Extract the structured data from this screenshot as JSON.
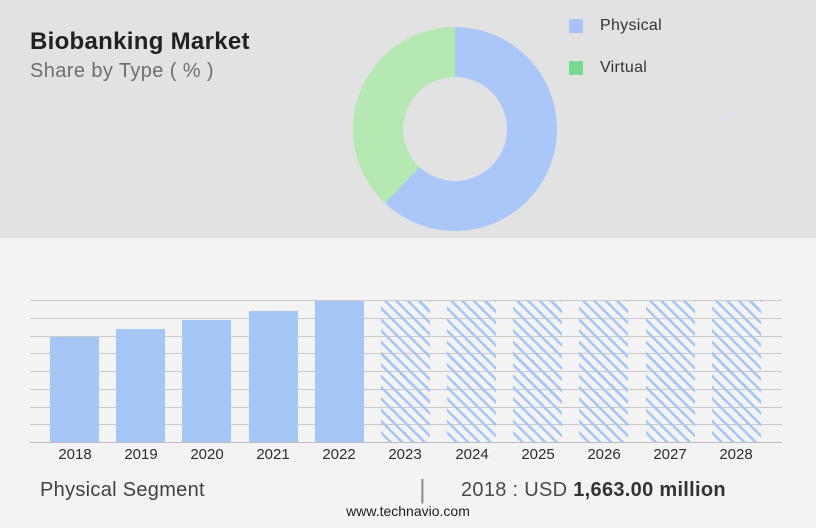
{
  "header": {
    "title": "Biobanking Market",
    "subtitle": "Share by Type ( % )"
  },
  "legend": {
    "items": [
      {
        "label": "Physical",
        "color": "#a6c4f6"
      },
      {
        "label": "Virtual",
        "color": "#74db90"
      }
    ]
  },
  "caption": {
    "segment": "Physical Segment",
    "divider": "|",
    "value_prefix": "2018 : USD ",
    "value_bold": "1,663.00 million"
  },
  "footer": {
    "website": "www.technavio.com"
  },
  "colors": {
    "top_band_bg": "#e2e2e2",
    "chart_band_bg": "#f3f3f4",
    "bar_blue": "#a5c7f8",
    "donut_blue": "#a9c8f9",
    "donut_green": "#b4e9b2",
    "gridline": "#cacaca"
  },
  "chart_data": [
    {
      "type": "pie",
      "subtype": "donut",
      "title": "Biobanking Market — Share by Type ( % )",
      "labels": [
        "Physical",
        "Virtual"
      ],
      "values_pct": [
        62,
        38
      ],
      "colors": [
        "#a9c8f9",
        "#b4e9b2"
      ],
      "start_angle_deg": 0,
      "direction": "clockwise",
      "hole_ratio": 0.51,
      "legend_position": "right",
      "note": "No numeric labels shown; percentages estimated from arc angles (split at ~223deg)"
    },
    {
      "type": "bar",
      "categories": [
        "2018",
        "2019",
        "2020",
        "2021",
        "2022",
        "2023",
        "2024",
        "2025",
        "2026",
        "2027",
        "2028"
      ],
      "values_relative_to_2022": [
        0.746,
        0.803,
        0.866,
        0.93,
        1.0,
        1.0,
        1.0,
        1.0,
        1.0,
        1.0,
        1.0
      ],
      "solid_years": [
        "2018",
        "2019",
        "2020",
        "2021",
        "2022"
      ],
      "forecast_hatched_years": [
        "2023",
        "2024",
        "2025",
        "2026",
        "2027",
        "2028"
      ],
      "known_point": {
        "year": "2018",
        "text": "2018 : USD 1,663.00 million",
        "value_usd_million": 1663.0
      },
      "bar_color": "#a5c7f8",
      "hatch_style": "backslash diagonal lines, same blue",
      "ylabel": "",
      "xlabel": "",
      "y_axis_ticks": "none shown",
      "gridlines": "9 horizontal light-gray lines, evenly spaced; bottom line is baseline",
      "legend_position": "none"
    }
  ]
}
